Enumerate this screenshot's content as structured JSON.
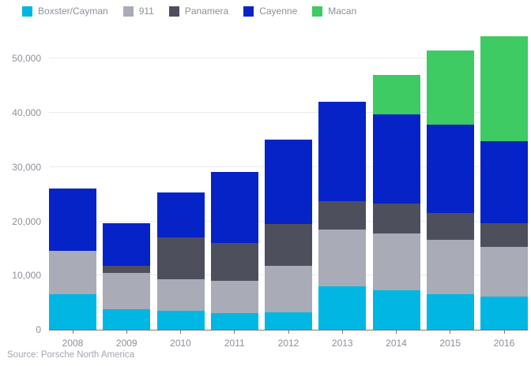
{
  "source": "Source: Porsche North America",
  "chart_data": {
    "type": "bar",
    "stacked": true,
    "title": "",
    "xlabel": "",
    "ylabel": "",
    "categories": [
      "2008",
      "2009",
      "2010",
      "2011",
      "2012",
      "2013",
      "2014",
      "2015",
      "2016"
    ],
    "series": [
      {
        "name": "Boxster/Cayman",
        "color": "#00b7e3",
        "values": [
          6500,
          3850,
          3500,
          3100,
          3250,
          7950,
          7250,
          6600,
          6150
        ]
      },
      {
        "name": "911",
        "color": "#a9abb6",
        "values": [
          8100,
          6700,
          5800,
          5950,
          8550,
          10600,
          10550,
          10050,
          9200
        ]
      },
      {
        "name": "Panamera",
        "color": "#4d4f5c",
        "values": [
          0,
          1300,
          7650,
          7000,
          7700,
          5100,
          5550,
          4850,
          4250
        ]
      },
      {
        "name": "Cayenne",
        "color": "#0523c6",
        "values": [
          11400,
          7850,
          8300,
          13000,
          15550,
          18450,
          16350,
          16300,
          15200
        ]
      },
      {
        "name": "Macan",
        "color": "#3ecb63",
        "values": [
          0,
          0,
          0,
          0,
          0,
          0,
          7250,
          13700,
          19300
        ]
      }
    ],
    "ylim": [
      0,
      55000
    ],
    "yticks": [
      0,
      10000,
      20000,
      30000,
      40000,
      50000
    ],
    "ytick_labels": [
      "0",
      "10,000",
      "20,000",
      "30,000",
      "40,000",
      "50,000"
    ],
    "grid": true,
    "legend_position": "top"
  },
  "colors": {
    "background": "#ffffff",
    "gridline": "#e9ebef",
    "axis_line": "#74777d",
    "tick_text": "#8d909a",
    "source_text": "#a4a6af"
  }
}
